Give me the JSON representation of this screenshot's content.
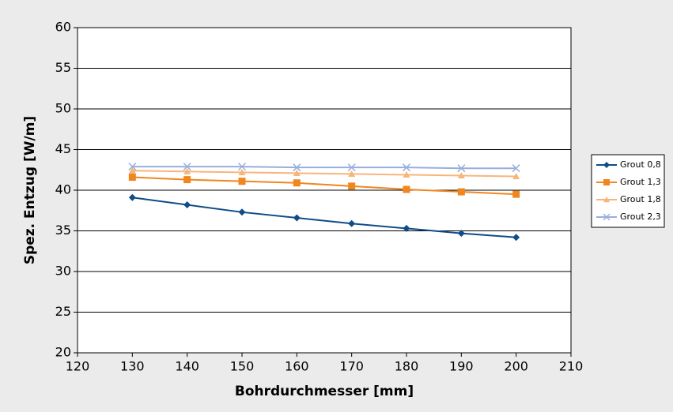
{
  "chart_data": {
    "type": "line",
    "x_label": "Bohrdurchmesser [mm]",
    "y_label": "Spez. Entzug [W/m]",
    "x": [
      130,
      140,
      150,
      160,
      170,
      180,
      190,
      200
    ],
    "series": [
      {
        "name": "Grout 0,8",
        "color": "#0f4c88",
        "marker": "diamond",
        "values": [
          39.1,
          38.2,
          37.3,
          36.6,
          35.9,
          35.3,
          34.7,
          34.2
        ]
      },
      {
        "name": "Grout 1,3",
        "color": "#f0861e",
        "marker": "square",
        "values": [
          41.6,
          41.3,
          41.1,
          40.9,
          40.5,
          40.1,
          39.8,
          39.5
        ]
      },
      {
        "name": "Grout 1,8",
        "color": "#f8b57a",
        "marker": "triangle",
        "values": [
          42.4,
          42.3,
          42.2,
          42.1,
          42.0,
          41.9,
          41.8,
          41.7
        ]
      },
      {
        "name": "Grout 2,3",
        "color": "#98aedc",
        "marker": "x",
        "values": [
          42.9,
          42.9,
          42.9,
          42.8,
          42.8,
          42.8,
          42.7,
          42.7
        ]
      }
    ],
    "xlim": [
      120,
      210
    ],
    "xticks": [
      120,
      130,
      140,
      150,
      160,
      170,
      180,
      190,
      200,
      210
    ],
    "ylim": [
      20,
      60
    ],
    "yticks": [
      20,
      25,
      30,
      35,
      40,
      45,
      50,
      55,
      60
    ],
    "grid": true,
    "legend": "right"
  }
}
